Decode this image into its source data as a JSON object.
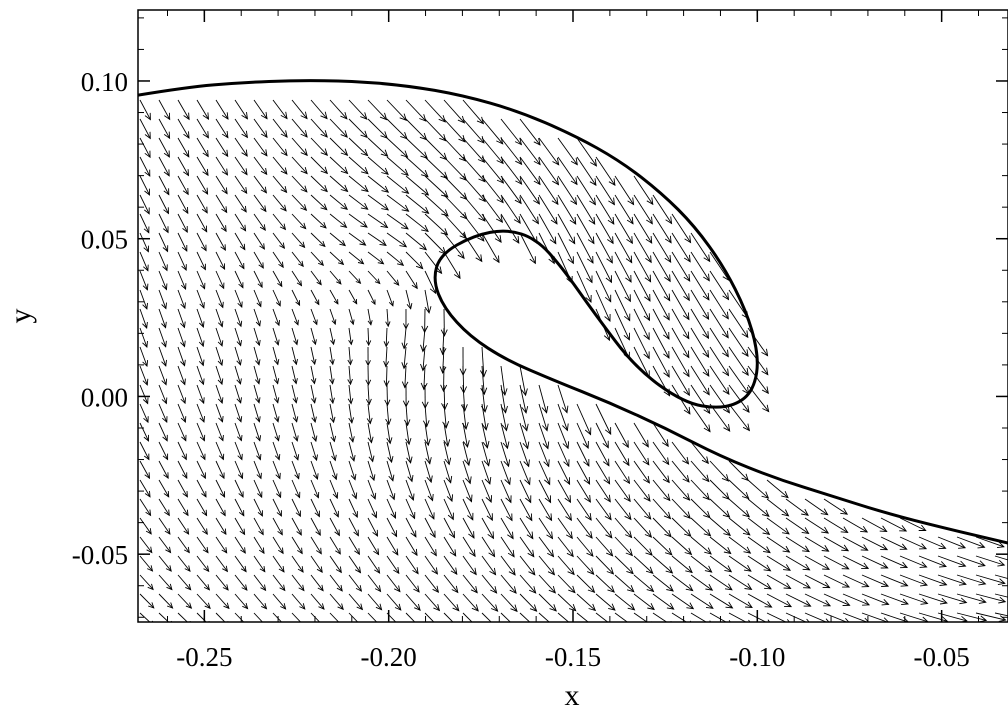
{
  "chart_data": {
    "type": "quiver",
    "title": "",
    "xlabel": "x",
    "ylabel": "y",
    "xlim": [
      -0.268,
      -0.032
    ],
    "ylim": [
      -0.0715,
      0.1225
    ],
    "grid": false,
    "x_ticks": [
      {
        "value": -0.25,
        "label": "-0.25"
      },
      {
        "value": -0.2,
        "label": "-0.20"
      },
      {
        "value": -0.15,
        "label": "-0.15"
      },
      {
        "value": -0.1,
        "label": "-0.10"
      },
      {
        "value": -0.05,
        "label": "-0.05"
      }
    ],
    "y_ticks": [
      {
        "value": 0.1,
        "label": "0.10"
      },
      {
        "value": 0.05,
        "label": "0.05"
      },
      {
        "value": 0.0,
        "label": "0.00"
      },
      {
        "value": -0.05,
        "label": "-0.05"
      }
    ],
    "free_surface": [
      [
        -0.268,
        0.0955
      ],
      [
        -0.255,
        0.098
      ],
      [
        -0.24,
        0.0995
      ],
      [
        -0.225,
        0.1002
      ],
      [
        -0.21,
        0.1
      ],
      [
        -0.195,
        0.0985
      ],
      [
        -0.18,
        0.0955
      ],
      [
        -0.165,
        0.0905
      ],
      [
        -0.15,
        0.083
      ],
      [
        -0.137,
        0.0745
      ],
      [
        -0.126,
        0.0645
      ],
      [
        -0.117,
        0.054
      ],
      [
        -0.109,
        0.041
      ],
      [
        -0.103,
        0.027
      ],
      [
        -0.1,
        0.015
      ],
      [
        -0.1,
        0.006
      ],
      [
        -0.103,
        -0.001
      ],
      [
        -0.11,
        -0.004
      ],
      [
        -0.12,
        -0.002
      ],
      [
        -0.133,
        0.009
      ],
      [
        -0.144,
        0.026
      ],
      [
        -0.153,
        0.041
      ],
      [
        -0.16,
        0.05
      ],
      [
        -0.168,
        0.053
      ],
      [
        -0.177,
        0.051
      ],
      [
        -0.186,
        0.045
      ],
      [
        -0.188,
        0.037
      ],
      [
        -0.185,
        0.028
      ],
      [
        -0.178,
        0.019
      ],
      [
        -0.168,
        0.0115
      ],
      [
        -0.155,
        0.005
      ],
      [
        -0.14,
        -0.002
      ],
      [
        -0.125,
        -0.01
      ],
      [
        -0.11,
        -0.019
      ],
      [
        -0.095,
        -0.026
      ],
      [
        -0.08,
        -0.0315
      ],
      [
        -0.065,
        -0.037
      ],
      [
        -0.05,
        -0.0415
      ],
      [
        -0.032,
        -0.0465
      ]
    ]
  }
}
